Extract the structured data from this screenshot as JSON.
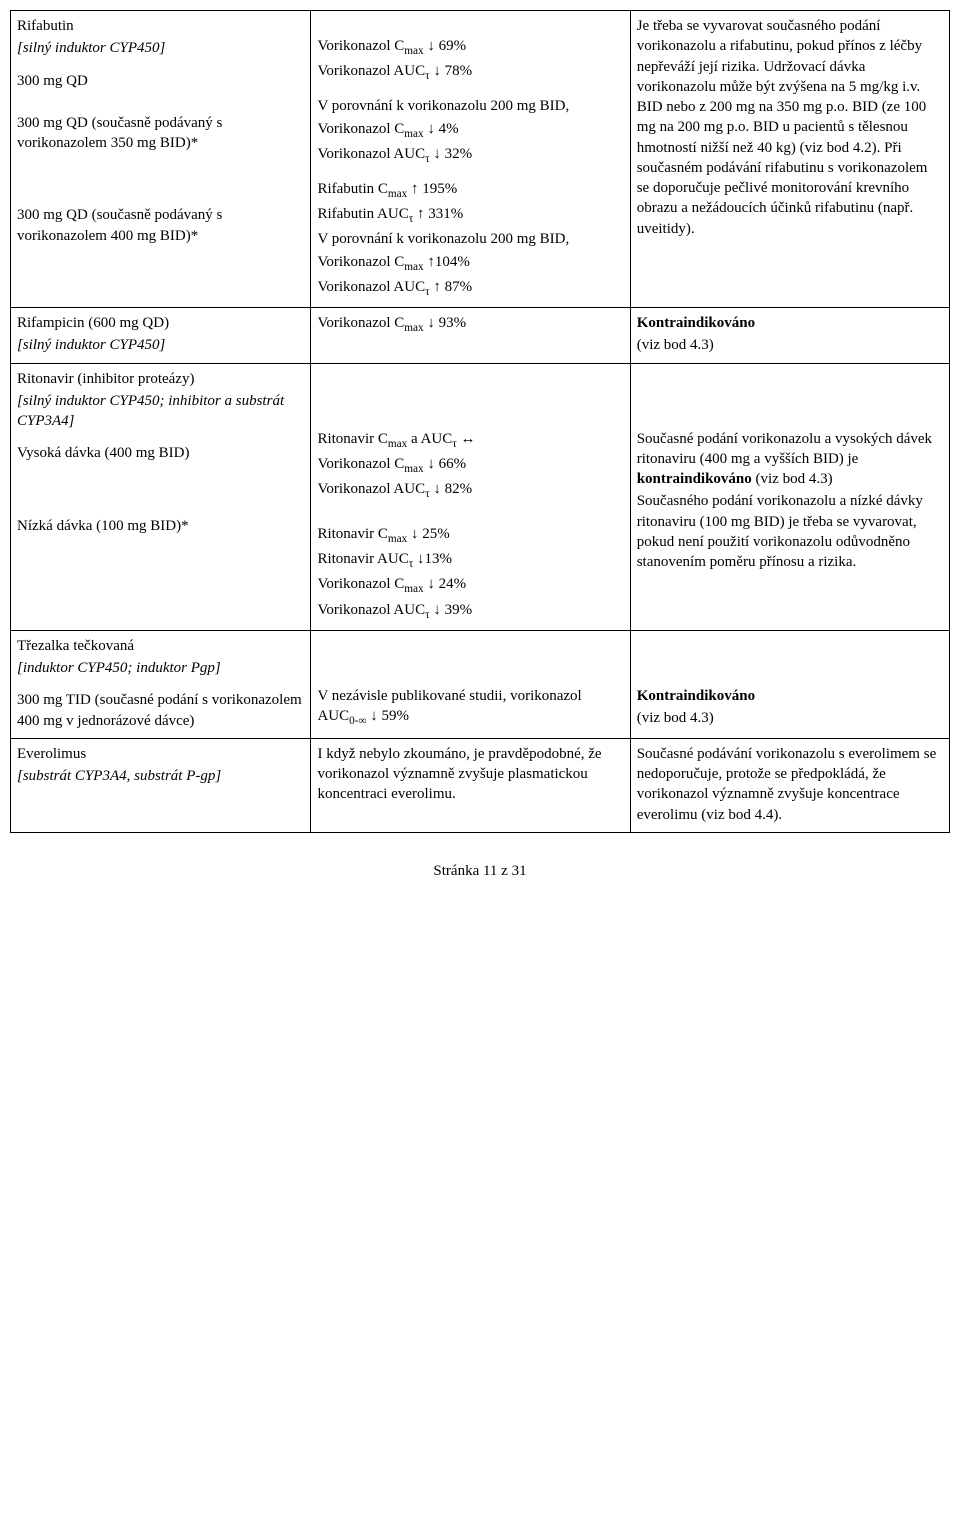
{
  "r1c1": {
    "l1": "Rifabutin",
    "l2": "[silný induktor CYP450]",
    "l3": "300 mg QD",
    "l4": "300 mg QD (současně podávaný s vorikonazolem 350 mg BID)*",
    "l5": "300 mg QD (současně podávaný s vorikonazolem 400 mg BID)*"
  },
  "r1c2": {
    "l1": "Vorikonazol Cmax ↓ 69%",
    "l2": "Vorikonazol AUCτ ↓ 78%",
    "l3": "V porovnání k vorikonazolu 200 mg BID,",
    "l4": "Vorikonazol Cmax ↓ 4%",
    "l5": "Vorikonazol AUCτ ↓ 32%",
    "l6": "Rifabutin Cmax ↑ 195%",
    "l7": "Rifabutin AUCτ ↑ 331%",
    "l8": "V porovnání k vorikonazolu 200 mg BID,",
    "l9": "Vorikonazol Cmax ↑104%",
    "l10": "Vorikonazol AUCτ ↑ 87%"
  },
  "r1c3": {
    "l1": "Je třeba se vyvarovat současného podání vorikonazolu a rifabutinu, pokud přínos z léčby nepřeváží její rizika. Udržovací dávka vorikonazolu může být zvýšena na 5 mg/kg i.v. BID nebo z 200 mg na 350 mg p.o. BID (ze 100 mg na 200 mg p.o. BID u pacientů s tělesnou hmotností nižší než 40 kg) (viz bod 4.2). Při současném podávání rifabutinu s vorikonazolem se doporučuje pečlivé monitorování krevního obrazu a nežádoucích účinků rifabutinu (např. uveitidy)."
  },
  "r2c1": {
    "l1": "Rifampicin (600 mg QD)",
    "l2": "[silný induktor CYP450]"
  },
  "r2c2": {
    "l1": "Vorikonazol Cmax ↓ 93%"
  },
  "r2c3": {
    "l1": "Kontraindikováno",
    "l2": "(viz bod 4.3)"
  },
  "r3c1": {
    "l1": "Ritonavir (inhibitor proteázy)",
    "l2": "[silný induktor CYP450; inhibitor a substrát CYP3A4]",
    "l3": "Vysoká dávka (400 mg BID)",
    "l4": "Nízká dávka (100 mg BID)*"
  },
  "r3c2": {
    "l1": "Ritonavir Cmax a AUCτ ↔",
    "l2": "Vorikonazol Cmax  ↓ 66%",
    "l3": "Vorikonazol AUCτ ↓ 82%",
    "l4": "Ritonavir Cmax ↓ 25%",
    "l5": "Ritonavir AUCτ ↓13%",
    "l6": "Vorikonazol Cmax ↓ 24%",
    "l7": "Vorikonazol AUCτ ↓ 39%"
  },
  "r3c3": {
    "l1a": "Současné podání vorikonazolu a vysokých dávek ritonaviru (400 mg a vyšších BID) je ",
    "l1b": "kontraindikováno",
    "l1c": " (viz bod 4.3)",
    "l2": "Současného podání vorikonazolu a nízké dávky ritonaviru (100 mg BID) je třeba se vyvarovat, pokud není použití vorikonazolu odůvodněno stanovením poměru přínosu a rizika."
  },
  "r4c1": {
    "l1": "Třezalka tečkovaná",
    "l2": "[induktor CYP450; induktor Pgp]",
    "l3": "300 mg TID (současné podání s vorikonazolem 400 mg v jednorázové dávce)"
  },
  "r4c2": {
    "l1": "V nezávisle publikované studii, vorikonazol AUC0-∞ ↓ 59%"
  },
  "r4c3": {
    "l1": "Kontraindikováno",
    "l2": "(viz bod 4.3)"
  },
  "r5c1": {
    "l1": "Everolimus",
    "l2": "[substrát CYP3A4, substrát P-gp]"
  },
  "r5c2": {
    "l1": "I když nebylo zkoumáno, je pravděpodobné, že vorikonazol významně zvyšuje plasmatickou koncentraci everolimu."
  },
  "r5c3": {
    "l1": "Současné podávání vorikonazolu s everolimem se nedoporučuje, protože se předpokládá, že vorikonazol významně zvyšuje koncentrace everolimu (viz bod 4.4)."
  },
  "footer": "Stránka 11 z 31"
}
